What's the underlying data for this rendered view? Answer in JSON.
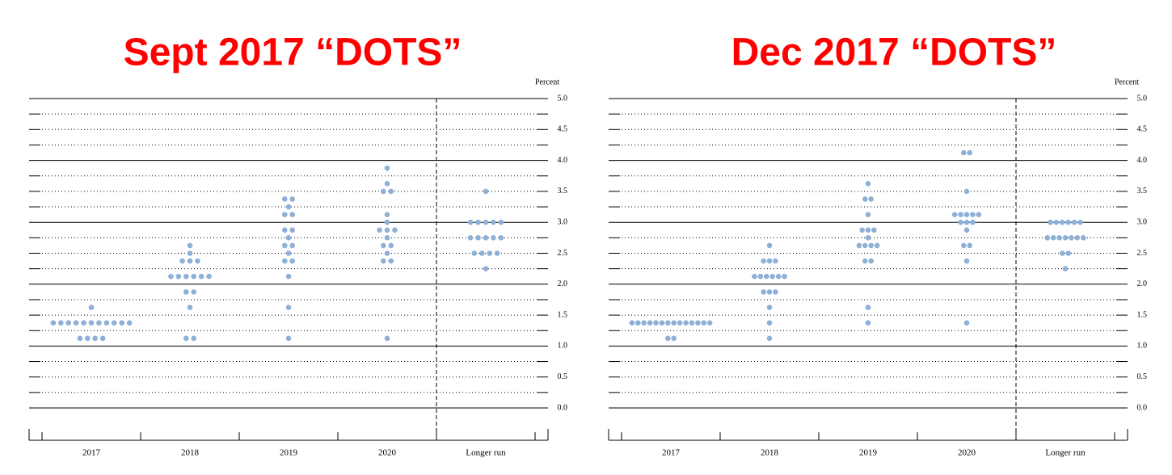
{
  "chart_data": [
    {
      "type": "dotplot",
      "title": "Sept 2017 “DOTS”",
      "ylabel": "Percent",
      "color": "#8fb0d6",
      "categories": [
        "2017",
        "2018",
        "2019",
        "2020",
        "Longer run"
      ],
      "values": [
        [
          1.625,
          1.375,
          1.375,
          1.375,
          1.375,
          1.375,
          1.375,
          1.375,
          1.375,
          1.375,
          1.375,
          1.375,
          1.125,
          1.125,
          1.125,
          1.125
        ],
        [
          2.625,
          2.5,
          2.375,
          2.375,
          2.375,
          2.125,
          2.125,
          2.125,
          2.125,
          2.125,
          2.125,
          1.875,
          1.875,
          1.625,
          1.125,
          1.125
        ],
        [
          3.375,
          3.375,
          3.25,
          3.125,
          3.125,
          2.875,
          2.875,
          2.75,
          2.625,
          2.625,
          2.5,
          2.375,
          2.375,
          2.125,
          1.625,
          1.125
        ],
        [
          3.875,
          3.625,
          3.5,
          3.5,
          3.125,
          3.0,
          2.875,
          2.875,
          2.875,
          2.75,
          2.625,
          2.625,
          2.5,
          2.375,
          2.375,
          1.125
        ],
        [
          3.5,
          3.0,
          3.0,
          3.0,
          3.0,
          3.0,
          2.75,
          2.75,
          2.75,
          2.75,
          2.75,
          2.5,
          2.5,
          2.5,
          2.5,
          2.25
        ]
      ],
      "ylim": [
        0,
        5
      ],
      "yticks": [
        {
          "value": 0,
          "label": "0.0"
        },
        0.5,
        {
          "value": 1,
          "label": "1.0"
        },
        1.5,
        {
          "value": 2,
          "label": "2.0"
        },
        2.5,
        {
          "value": 3,
          "label": "3.0"
        },
        3.5,
        {
          "value": 4,
          "label": "4.0"
        },
        4.5,
        {
          "value": 5,
          "label": "5.0"
        }
      ],
      "minor_yticks": [
        0.25,
        0.75,
        1.25,
        1.75,
        2.25,
        2.75,
        3.25,
        3.75,
        4.25,
        4.75
      ],
      "grid": true
    },
    {
      "type": "dotplot",
      "title": "Dec 2017 “DOTS”",
      "ylabel": "Percent",
      "color": "#8fb0d6",
      "categories": [
        "2017",
        "2018",
        "2019",
        "2020",
        "Longer run"
      ],
      "values": [
        [
          1.375,
          1.375,
          1.375,
          1.375,
          1.375,
          1.375,
          1.375,
          1.375,
          1.375,
          1.375,
          1.375,
          1.375,
          1.375,
          1.375,
          1.125,
          1.125
        ],
        [
          2.625,
          2.375,
          2.375,
          2.375,
          2.125,
          2.125,
          2.125,
          2.125,
          2.125,
          2.125,
          1.875,
          1.875,
          1.875,
          1.625,
          1.375,
          1.125
        ],
        [
          3.625,
          3.375,
          3.375,
          3.125,
          2.875,
          2.875,
          2.875,
          2.75,
          2.625,
          2.625,
          2.625,
          2.625,
          2.375,
          2.375,
          1.625,
          1.375
        ],
        [
          4.125,
          4.125,
          3.5,
          3.125,
          3.125,
          3.125,
          3.125,
          3.125,
          3.0,
          3.0,
          3.0,
          2.875,
          2.625,
          2.625,
          2.375,
          1.375
        ],
        [
          3.0,
          3.0,
          3.0,
          3.0,
          3.0,
          3.0,
          2.75,
          2.75,
          2.75,
          2.75,
          2.75,
          2.75,
          2.75,
          2.5,
          2.5,
          2.25
        ]
      ],
      "ylim": [
        0,
        5
      ],
      "yticks": [
        {
          "value": 0,
          "label": "0.0"
        },
        0.5,
        {
          "value": 1,
          "label": "1.0"
        },
        1.5,
        {
          "value": 2,
          "label": "2.0"
        },
        2.5,
        {
          "value": 3,
          "label": "3.0"
        },
        3.5,
        {
          "value": 4,
          "label": "4.0"
        },
        4.5,
        {
          "value": 5,
          "label": "5.0"
        }
      ],
      "minor_yticks": [
        0.25,
        0.75,
        1.25,
        1.75,
        2.25,
        2.75,
        3.25,
        3.75,
        4.25,
        4.75
      ],
      "grid": true
    }
  ]
}
